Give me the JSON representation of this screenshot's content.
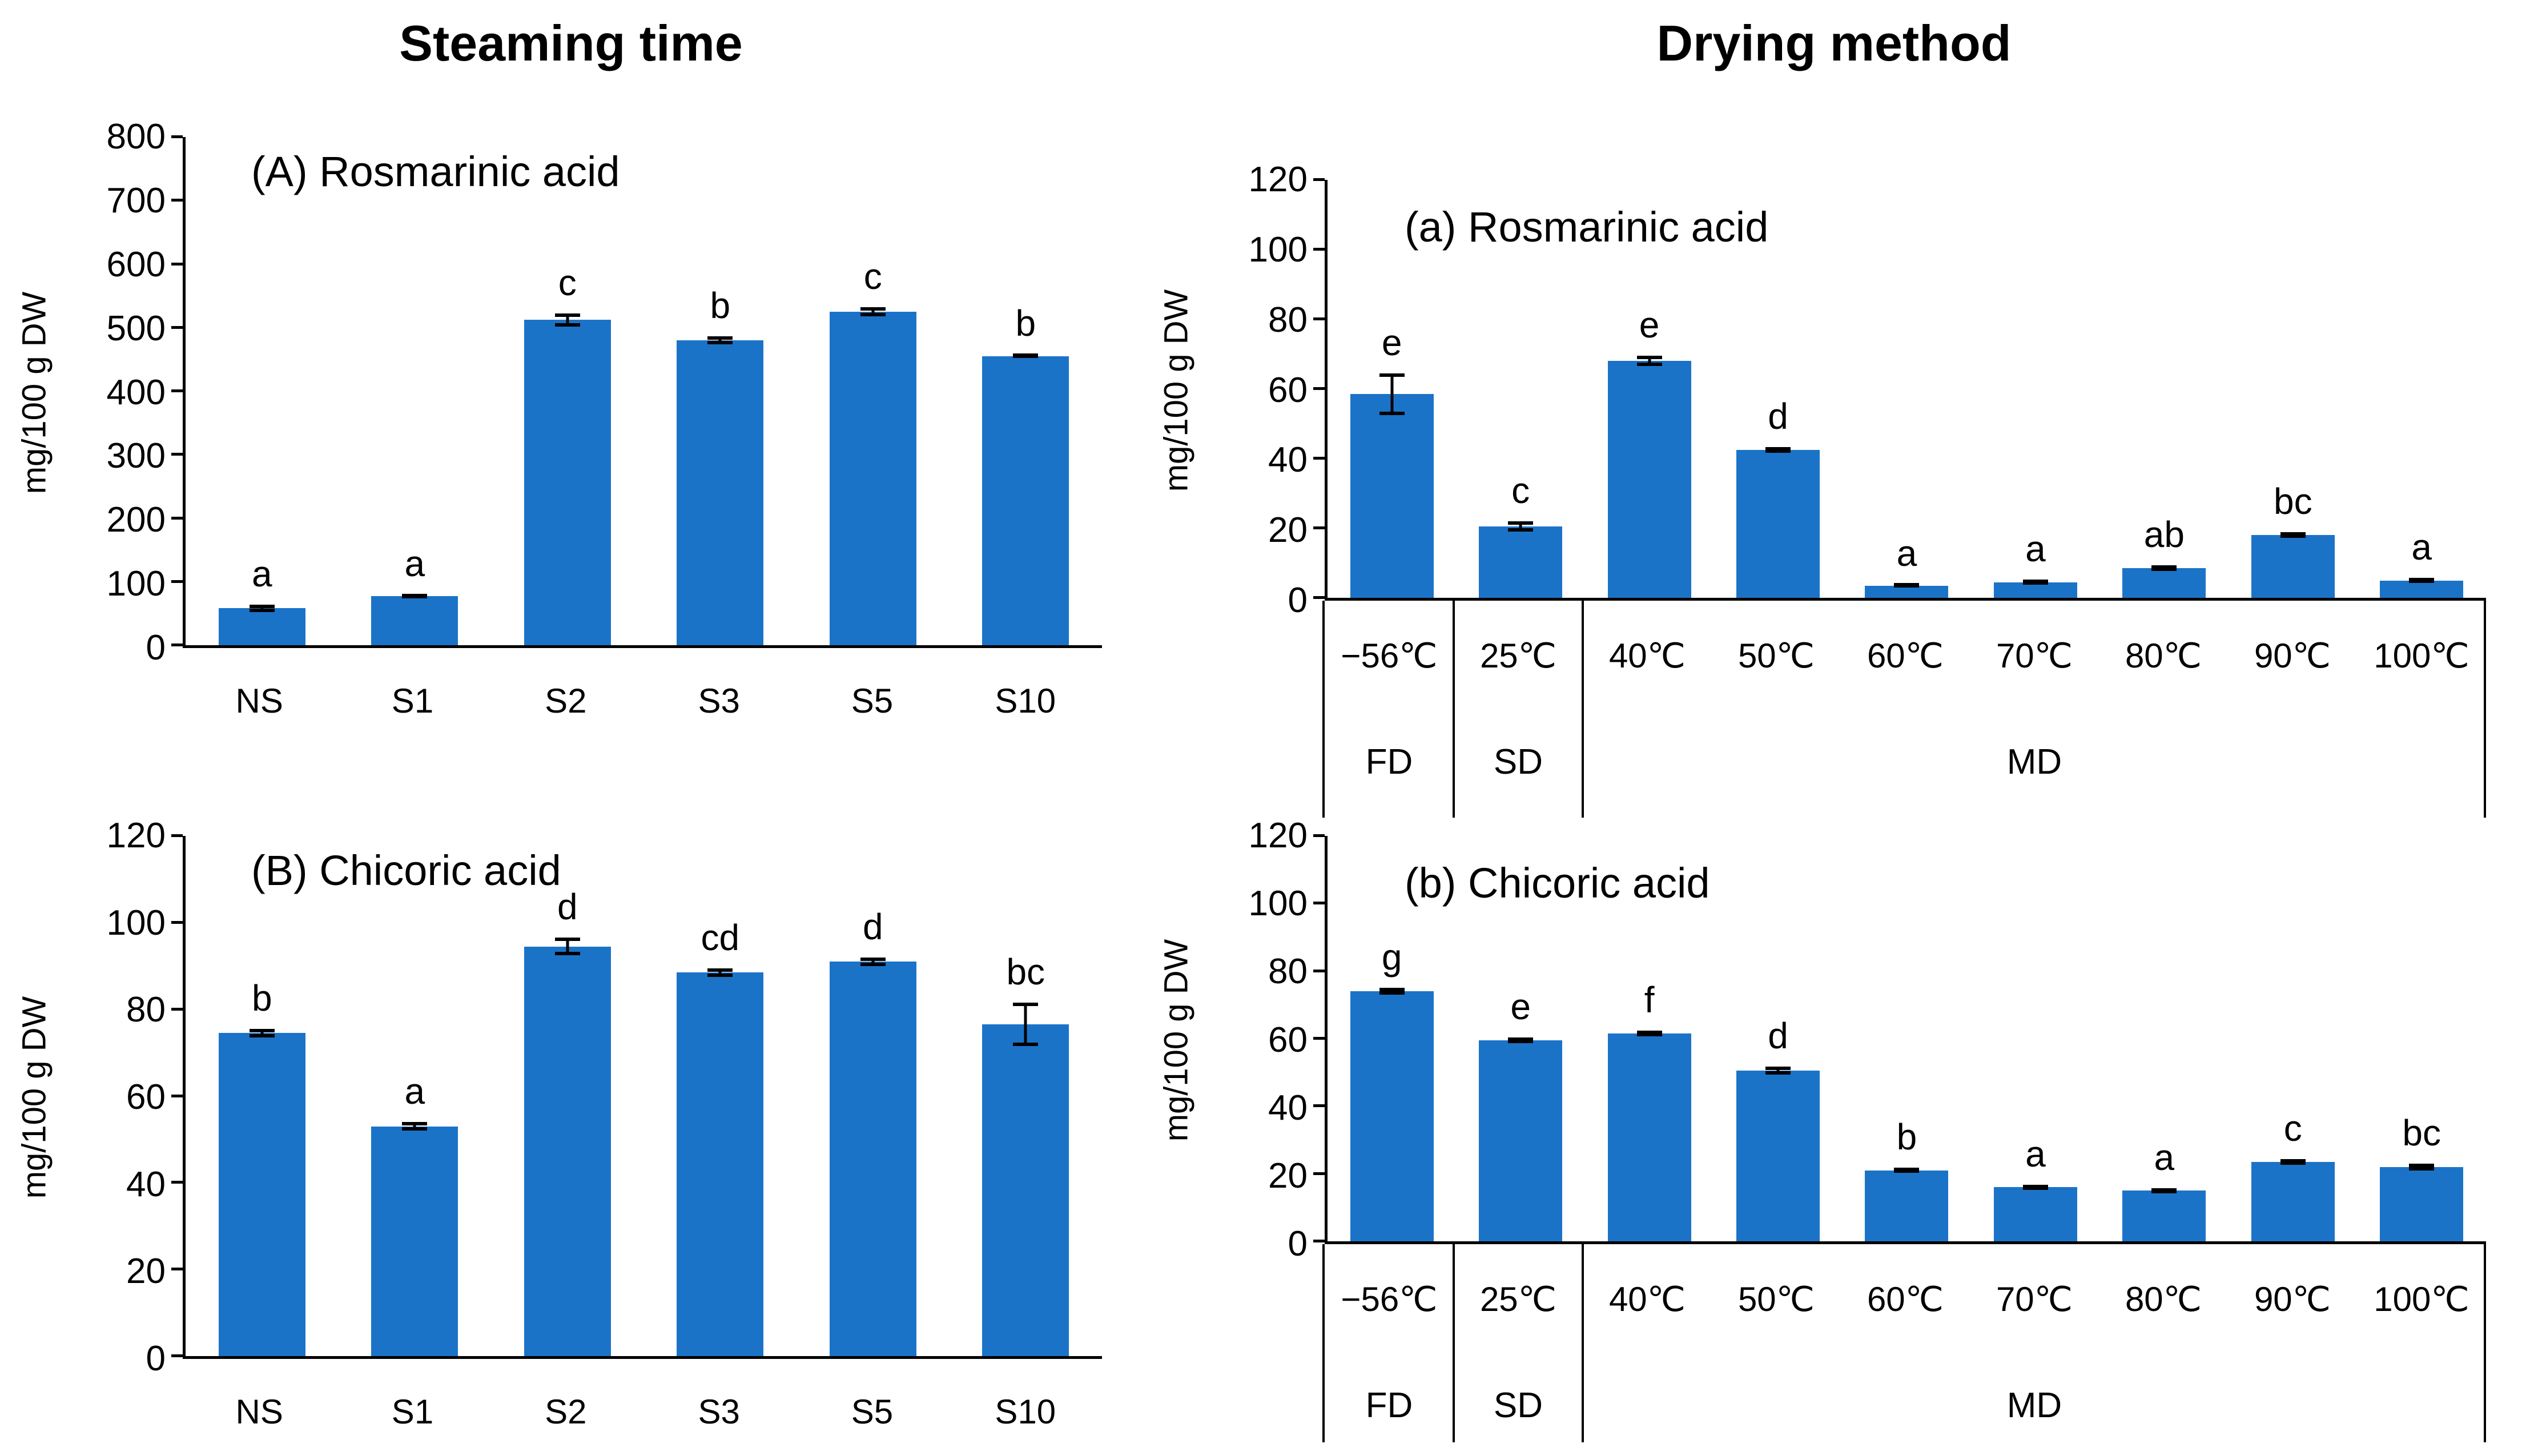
{
  "figure": {
    "column_titles": [
      "Steaming time",
      "Drying method"
    ]
  },
  "colors": {
    "bar": "#1B73C8",
    "axis": "#000000"
  },
  "chart_data": [
    {
      "id": "steaming-rosmarinic",
      "type": "bar",
      "position": "top-left",
      "column_title": "Steaming time",
      "panel_label": "(A) Rosmarinic acid",
      "ylabel": "mg/100 g DW",
      "ylim": [
        0,
        800
      ],
      "ytick_step": 100,
      "grid": false,
      "categories": [
        "NS",
        "S1",
        "S2",
        "S3",
        "S5",
        "S10"
      ],
      "values": [
        58,
        77,
        512,
        480,
        525,
        455
      ],
      "errors": [
        6,
        3,
        10,
        6,
        7,
        3
      ],
      "sig_letters": [
        "a",
        "a",
        "c",
        "b",
        "c",
        "b"
      ]
    },
    {
      "id": "drying-rosmarinic",
      "type": "bar",
      "position": "top-right",
      "column_title": "Drying method",
      "panel_label": "(a) Rosmarinic acid",
      "ylabel": "mg/100 g DW",
      "ylim": [
        0,
        120
      ],
      "ytick_step": 20,
      "grid": false,
      "categories": [
        "−56℃",
        "25℃",
        "40℃",
        "50℃",
        "60℃",
        "70℃",
        "80℃",
        "90℃",
        "100℃"
      ],
      "values": [
        58.5,
        20.5,
        68,
        42.5,
        3.5,
        4.5,
        8.5,
        18,
        5
      ],
      "errors": [
        6,
        1.5,
        1.5,
        0.8,
        0.5,
        0.8,
        0.8,
        0.8,
        0.8
      ],
      "sig_letters": [
        "e",
        "c",
        "e",
        "d",
        "a",
        "a",
        "ab",
        "bc",
        "a"
      ],
      "groups": [
        {
          "label": "FD",
          "span": 1
        },
        {
          "label": "SD",
          "span": 1
        },
        {
          "label": "MD",
          "span": 7
        }
      ]
    },
    {
      "id": "steaming-chicoric",
      "type": "bar",
      "position": "bottom-left",
      "column_title": "Steaming time",
      "panel_label": "(B) Chicoric acid",
      "ylabel": "mg/100 g DW",
      "ylim": [
        0,
        120
      ],
      "ytick_step": 20,
      "grid": false,
      "categories": [
        "NS",
        "S1",
        "S2",
        "S3",
        "S5",
        "S10"
      ],
      "values": [
        74.5,
        53,
        94.5,
        88.5,
        91,
        76.5
      ],
      "errors": [
        1,
        1,
        2,
        1,
        1,
        5
      ],
      "sig_letters": [
        "b",
        "a",
        "d",
        "cd",
        "d",
        "bc"
      ]
    },
    {
      "id": "drying-chicoric",
      "type": "bar",
      "position": "bottom-right",
      "column_title": "Drying method",
      "panel_label": "(b) Chicoric acid",
      "ylabel": "mg/100 g DW",
      "ylim": [
        0,
        120
      ],
      "ytick_step": 20,
      "grid": false,
      "categories": [
        "−56℃",
        "25℃",
        "40℃",
        "50℃",
        "60℃",
        "70℃",
        "80℃",
        "90℃",
        "100℃"
      ],
      "values": [
        74,
        59.5,
        61.5,
        50.5,
        21,
        16,
        15,
        23.5,
        22
      ],
      "errors": [
        1,
        0.8,
        0.8,
        1.2,
        0.8,
        0.8,
        0.8,
        0.8,
        1
      ],
      "sig_letters": [
        "g",
        "e",
        "f",
        "d",
        "b",
        "a",
        "a",
        "c",
        "bc"
      ],
      "groups": [
        {
          "label": "FD",
          "span": 1
        },
        {
          "label": "SD",
          "span": 1
        },
        {
          "label": "MD",
          "span": 7
        }
      ]
    }
  ]
}
